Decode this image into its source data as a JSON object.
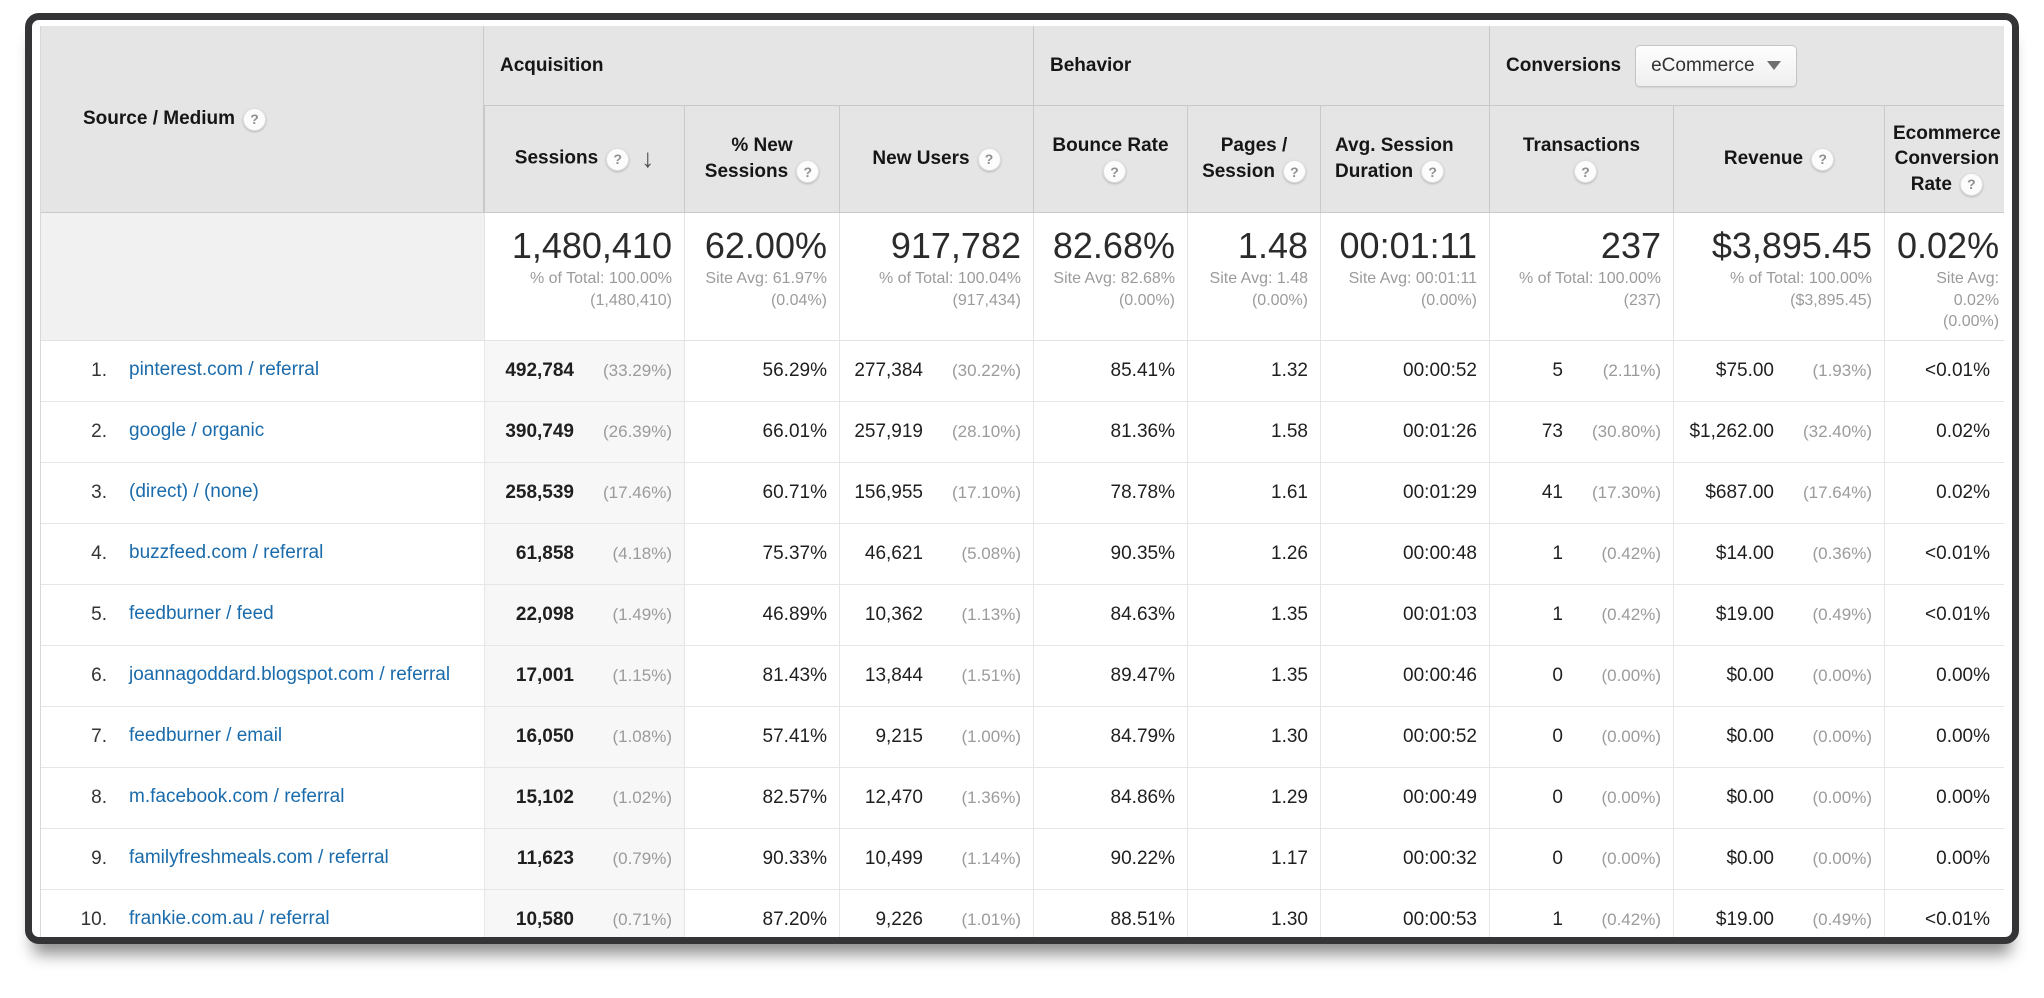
{
  "colors": {
    "header_bg": "#e5e5e5",
    "link_blue": "#1a6bab",
    "muted_gray": "#9b9b9b",
    "sorted_column_bg": "#f7f7f7",
    "frame_border": "#343436"
  },
  "report": {
    "dimension_column": {
      "label": "Source / Medium"
    },
    "sections": {
      "acquisition": "Acquisition",
      "behavior": "Behavior",
      "conversions": "Conversions"
    },
    "conversions_selector": {
      "value": "eCommerce"
    },
    "columns": [
      {
        "id": "sessions",
        "label": "Sessions",
        "sorted": "descending"
      },
      {
        "id": "new_sessions",
        "label": "% New Sessions"
      },
      {
        "id": "new_users",
        "label": "New Users"
      },
      {
        "id": "bounce",
        "label": "Bounce Rate"
      },
      {
        "id": "pages",
        "label": "Pages / Session"
      },
      {
        "id": "duration",
        "label": "Avg. Session Duration"
      },
      {
        "id": "transactions",
        "label": "Transactions"
      },
      {
        "id": "revenue",
        "label": "Revenue"
      },
      {
        "id": "conv_rate",
        "label": "Ecommerce Conversion Rate"
      }
    ],
    "totals": {
      "sessions": {
        "value": "1,480,410",
        "sub": "% of Total: 100.00% (1,480,410)"
      },
      "new_sessions": {
        "value": "62.00%",
        "sub": "Site Avg: 61.97% (0.04%)"
      },
      "new_users": {
        "value": "917,782",
        "sub": "% of Total: 100.04% (917,434)"
      },
      "bounce": {
        "value": "82.68%",
        "sub": "Site Avg: 82.68% (0.00%)"
      },
      "pages": {
        "value": "1.48",
        "sub": "Site Avg: 1.48 (0.00%)"
      },
      "duration": {
        "value": "00:01:11",
        "sub": "Site Avg: 00:01:11 (0.00%)"
      },
      "transactions": {
        "value": "237",
        "sub": "% of Total: 100.00% (237)"
      },
      "revenue": {
        "value": "$3,895.45",
        "sub": "% of Total: 100.00% ($3,895.45)"
      },
      "conv_rate": {
        "value": "0.02%",
        "sub": "Site Avg: 0.02% (0.00%)"
      }
    },
    "rows": [
      {
        "rank": "1.",
        "source": "pinterest.com / referral",
        "sessions": "492,784",
        "sessions_pct": "(33.29%)",
        "new_sessions": "56.29%",
        "new_users": "277,384",
        "new_users_pct": "(30.22%)",
        "bounce": "85.41%",
        "pages": "1.32",
        "duration": "00:00:52",
        "transactions": "5",
        "transactions_pct": "(2.11%)",
        "revenue": "$75.00",
        "revenue_pct": "(1.93%)",
        "conv_rate": "<0.01%"
      },
      {
        "rank": "2.",
        "source": "google / organic",
        "sessions": "390,749",
        "sessions_pct": "(26.39%)",
        "new_sessions": "66.01%",
        "new_users": "257,919",
        "new_users_pct": "(28.10%)",
        "bounce": "81.36%",
        "pages": "1.58",
        "duration": "00:01:26",
        "transactions": "73",
        "transactions_pct": "(30.80%)",
        "revenue": "$1,262.00",
        "revenue_pct": "(32.40%)",
        "conv_rate": "0.02%"
      },
      {
        "rank": "3.",
        "source": "(direct) / (none)",
        "sessions": "258,539",
        "sessions_pct": "(17.46%)",
        "new_sessions": "60.71%",
        "new_users": "156,955",
        "new_users_pct": "(17.10%)",
        "bounce": "78.78%",
        "pages": "1.61",
        "duration": "00:01:29",
        "transactions": "41",
        "transactions_pct": "(17.30%)",
        "revenue": "$687.00",
        "revenue_pct": "(17.64%)",
        "conv_rate": "0.02%"
      },
      {
        "rank": "4.",
        "source": "buzzfeed.com / referral",
        "sessions": "61,858",
        "sessions_pct": "(4.18%)",
        "new_sessions": "75.37%",
        "new_users": "46,621",
        "new_users_pct": "(5.08%)",
        "bounce": "90.35%",
        "pages": "1.26",
        "duration": "00:00:48",
        "transactions": "1",
        "transactions_pct": "(0.42%)",
        "revenue": "$14.00",
        "revenue_pct": "(0.36%)",
        "conv_rate": "<0.01%"
      },
      {
        "rank": "5.",
        "source": "feedburner / feed",
        "sessions": "22,098",
        "sessions_pct": "(1.49%)",
        "new_sessions": "46.89%",
        "new_users": "10,362",
        "new_users_pct": "(1.13%)",
        "bounce": "84.63%",
        "pages": "1.35",
        "duration": "00:01:03",
        "transactions": "1",
        "transactions_pct": "(0.42%)",
        "revenue": "$19.00",
        "revenue_pct": "(0.49%)",
        "conv_rate": "<0.01%"
      },
      {
        "rank": "6.",
        "source": "joannagoddard.blogspot.com / referral",
        "sessions": "17,001",
        "sessions_pct": "(1.15%)",
        "new_sessions": "81.43%",
        "new_users": "13,844",
        "new_users_pct": "(1.51%)",
        "bounce": "89.47%",
        "pages": "1.35",
        "duration": "00:00:46",
        "transactions": "0",
        "transactions_pct": "(0.00%)",
        "revenue": "$0.00",
        "revenue_pct": "(0.00%)",
        "conv_rate": "0.00%"
      },
      {
        "rank": "7.",
        "source": "feedburner / email",
        "sessions": "16,050",
        "sessions_pct": "(1.08%)",
        "new_sessions": "57.41%",
        "new_users": "9,215",
        "new_users_pct": "(1.00%)",
        "bounce": "84.79%",
        "pages": "1.30",
        "duration": "00:00:52",
        "transactions": "0",
        "transactions_pct": "(0.00%)",
        "revenue": "$0.00",
        "revenue_pct": "(0.00%)",
        "conv_rate": "0.00%"
      },
      {
        "rank": "8.",
        "source": "m.facebook.com / referral",
        "sessions": "15,102",
        "sessions_pct": "(1.02%)",
        "new_sessions": "82.57%",
        "new_users": "12,470",
        "new_users_pct": "(1.36%)",
        "bounce": "84.86%",
        "pages": "1.29",
        "duration": "00:00:49",
        "transactions": "0",
        "transactions_pct": "(0.00%)",
        "revenue": "$0.00",
        "revenue_pct": "(0.00%)",
        "conv_rate": "0.00%"
      },
      {
        "rank": "9.",
        "source": "familyfreshmeals.com / referral",
        "sessions": "11,623",
        "sessions_pct": "(0.79%)",
        "new_sessions": "90.33%",
        "new_users": "10,499",
        "new_users_pct": "(1.14%)",
        "bounce": "90.22%",
        "pages": "1.17",
        "duration": "00:00:32",
        "transactions": "0",
        "transactions_pct": "(0.00%)",
        "revenue": "$0.00",
        "revenue_pct": "(0.00%)",
        "conv_rate": "0.00%"
      },
      {
        "rank": "10.",
        "source": "frankie.com.au / referral",
        "sessions": "10,580",
        "sessions_pct": "(0.71%)",
        "new_sessions": "87.20%",
        "new_users": "9,226",
        "new_users_pct": "(1.01%)",
        "bounce": "88.51%",
        "pages": "1.30",
        "duration": "00:00:53",
        "transactions": "1",
        "transactions_pct": "(0.42%)",
        "revenue": "$19.00",
        "revenue_pct": "(0.49%)",
        "conv_rate": "<0.01%"
      }
    ]
  }
}
